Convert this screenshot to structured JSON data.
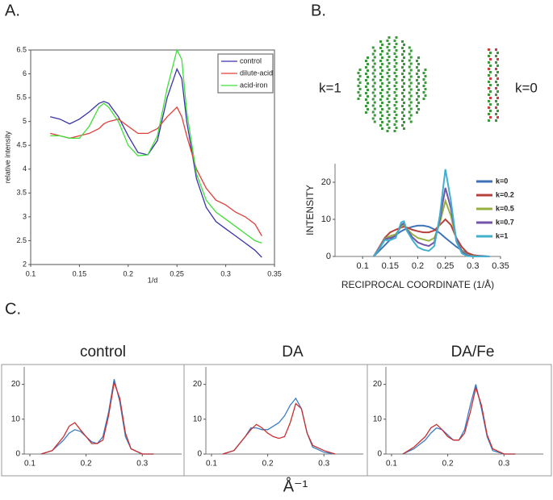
{
  "panel_labels": [
    "A.",
    "B.",
    "C."
  ],
  "shared_xlabel": "Å⁻¹",
  "chart_data": [
    {
      "type": "line",
      "xlabel": "1/d",
      "ylabel": "relative intensity",
      "frame": true,
      "legend": "upper right",
      "x": [
        0.12,
        0.13,
        0.14,
        0.15,
        0.16,
        0.17,
        0.175,
        0.18,
        0.19,
        0.2,
        0.21,
        0.22,
        0.23,
        0.24,
        0.25,
        0.255,
        0.26,
        0.27,
        0.28,
        0.29,
        0.3,
        0.31,
        0.32,
        0.33,
        0.337
      ],
      "xlim": [
        0.1,
        0.35
      ],
      "xticks": [
        0.1,
        0.15,
        0.2,
        0.25,
        0.3,
        0.35
      ],
      "ylim": [
        2,
        6.5
      ],
      "yticks": [
        2,
        2.5,
        3,
        3.5,
        4,
        4.5,
        5,
        5.5,
        6,
        6.5
      ],
      "series": [
        {
          "name": "control",
          "color": "#3a33a8",
          "values": [
            5.1,
            5.05,
            4.95,
            5.05,
            5.2,
            5.38,
            5.42,
            5.38,
            5.1,
            4.7,
            4.35,
            4.3,
            4.6,
            5.5,
            6.1,
            5.9,
            5.0,
            3.8,
            3.2,
            2.9,
            2.75,
            2.6,
            2.45,
            2.3,
            2.15
          ]
        },
        {
          "name": "dilute-acid",
          "color": "#e0403a",
          "values": [
            4.75,
            4.7,
            4.65,
            4.7,
            4.75,
            4.85,
            4.95,
            5.0,
            5.05,
            4.9,
            4.75,
            4.75,
            4.85,
            5.1,
            5.3,
            5.1,
            4.7,
            4.0,
            3.6,
            3.35,
            3.25,
            3.1,
            3.0,
            2.85,
            2.6
          ]
        },
        {
          "name": "acid-iron",
          "color": "#3ee03a",
          "values": [
            4.7,
            4.7,
            4.65,
            4.65,
            4.9,
            5.3,
            5.38,
            5.3,
            5.0,
            4.5,
            4.28,
            4.3,
            4.7,
            5.7,
            6.5,
            6.3,
            5.2,
            3.9,
            3.35,
            3.1,
            2.95,
            2.8,
            2.65,
            2.5,
            2.45
          ]
        }
      ]
    },
    {
      "type": "line",
      "xlabel": "RECIPROCAL COORDINATE (1/Å)",
      "ylabel": "INTENSITY",
      "legend": "right",
      "annotations": [
        "k=1",
        "k=0"
      ],
      "x": [
        0.12,
        0.13,
        0.14,
        0.15,
        0.16,
        0.17,
        0.175,
        0.18,
        0.19,
        0.2,
        0.21,
        0.22,
        0.23,
        0.24,
        0.25,
        0.26,
        0.27,
        0.28,
        0.29,
        0.3,
        0.31,
        0.32,
        0.33
      ],
      "xlim": [
        0.05,
        0.35
      ],
      "xticks": [
        0.1,
        0.15,
        0.2,
        0.25,
        0.3,
        0.35
      ],
      "ylim": [
        0,
        25
      ],
      "yticks": [
        0,
        10,
        20
      ],
      "series": [
        {
          "name": "k=0",
          "color": "#3d72b8",
          "values": [
            0,
            1.5,
            3,
            4.5,
            5.8,
            6.8,
            7.2,
            7.5,
            8,
            8.3,
            8.3,
            8,
            7.3,
            6.3,
            5,
            3.8,
            2.6,
            1.6,
            0.9,
            0.4,
            0.2,
            0.1,
            0
          ]
        },
        {
          "name": "k=0.2",
          "color": "#b8403c",
          "values": [
            0,
            2.5,
            5,
            6.5,
            7.2,
            7.8,
            8,
            7.8,
            7.2,
            6.8,
            6.5,
            6.5,
            7,
            8.5,
            10,
            8.5,
            5,
            2.5,
            1,
            0.4,
            0.1,
            0,
            0
          ]
        },
        {
          "name": "k=0.5",
          "color": "#96b040",
          "values": [
            0,
            2.3,
            4.8,
            5.5,
            6,
            8,
            8.6,
            7.5,
            6,
            5,
            4.6,
            4.2,
            5,
            9,
            15,
            11,
            4.5,
            1.5,
            0.4,
            0.1,
            0,
            0,
            0
          ]
        },
        {
          "name": "k=0.7",
          "color": "#7454a8",
          "values": [
            0,
            2.2,
            4.6,
            5,
            5.5,
            8.5,
            9,
            7.3,
            5.2,
            3.8,
            3.2,
            2.8,
            3.8,
            10,
            18.5,
            13,
            4.5,
            1.2,
            0.3,
            0,
            0,
            0,
            0
          ]
        },
        {
          "name": "k=1",
          "color": "#40b0cc",
          "values": [
            0,
            2,
            4.4,
            4.4,
            5,
            9.2,
            9.5,
            7,
            4.5,
            2.5,
            1.8,
            1.5,
            2.8,
            11,
            23.5,
            15,
            4,
            0.8,
            0.1,
            0,
            0,
            0,
            0
          ]
        }
      ]
    },
    {
      "type": "line",
      "title": "control",
      "x": [
        0.12,
        0.14,
        0.16,
        0.17,
        0.18,
        0.19,
        0.2,
        0.21,
        0.22,
        0.23,
        0.24,
        0.25,
        0.26,
        0.27,
        0.28,
        0.3,
        0.32
      ],
      "xlim": [
        0.09,
        0.37
      ],
      "xticks": [
        0.1,
        0.2,
        0.3
      ],
      "ylim": [
        0,
        25
      ],
      "yticks": [
        0,
        10,
        20
      ],
      "series": [
        {
          "color": "#3d7cc8",
          "values": [
            0,
            1,
            4,
            6,
            7,
            6.5,
            5,
            3.5,
            3,
            5,
            12,
            21.5,
            15,
            5,
            1.5,
            0,
            0
          ]
        },
        {
          "color": "#c83030",
          "values": [
            0,
            1,
            5,
            8,
            9,
            7,
            5,
            3,
            3,
            4,
            11,
            20.5,
            16,
            6,
            1.5,
            0,
            0
          ]
        }
      ]
    },
    {
      "type": "line",
      "title": "DA",
      "x": [
        0.12,
        0.14,
        0.16,
        0.17,
        0.18,
        0.19,
        0.2,
        0.21,
        0.22,
        0.23,
        0.24,
        0.25,
        0.26,
        0.27,
        0.28,
        0.3,
        0.32
      ],
      "xlim": [
        0.09,
        0.37
      ],
      "xticks": [
        0.1,
        0.2,
        0.3
      ],
      "ylim": [
        0,
        25
      ],
      "yticks": [
        0,
        10,
        20
      ],
      "series": [
        {
          "color": "#3d7cc8",
          "values": [
            0,
            1,
            5,
            7.5,
            7.5,
            7,
            7,
            8,
            9,
            11,
            14,
            16,
            13,
            6,
            2,
            0.5,
            0
          ]
        },
        {
          "color": "#c83030",
          "values": [
            0,
            1,
            5,
            7,
            8.5,
            7.5,
            6,
            5,
            4.5,
            5,
            9,
            14.5,
            13,
            6,
            2.5,
            1,
            0
          ]
        }
      ]
    },
    {
      "type": "line",
      "title": "DA/Fe",
      "x": [
        0.12,
        0.14,
        0.16,
        0.17,
        0.18,
        0.19,
        0.2,
        0.21,
        0.22,
        0.23,
        0.24,
        0.25,
        0.26,
        0.27,
        0.28,
        0.3,
        0.32
      ],
      "xlim": [
        0.09,
        0.37
      ],
      "xticks": [
        0.1,
        0.2,
        0.3
      ],
      "ylim": [
        0,
        25
      ],
      "yticks": [
        0,
        10,
        20
      ],
      "series": [
        {
          "color": "#3d7cc8",
          "values": [
            0,
            1.5,
            4,
            6,
            7.5,
            7,
            5.5,
            4,
            4,
            7,
            14,
            20,
            13,
            5,
            1,
            0,
            0
          ]
        },
        {
          "color": "#c83030",
          "values": [
            0,
            2,
            5,
            7.5,
            8.5,
            7,
            5,
            4,
            4,
            6,
            12,
            19,
            14,
            5.5,
            1.5,
            0,
            0
          ]
        }
      ]
    }
  ]
}
